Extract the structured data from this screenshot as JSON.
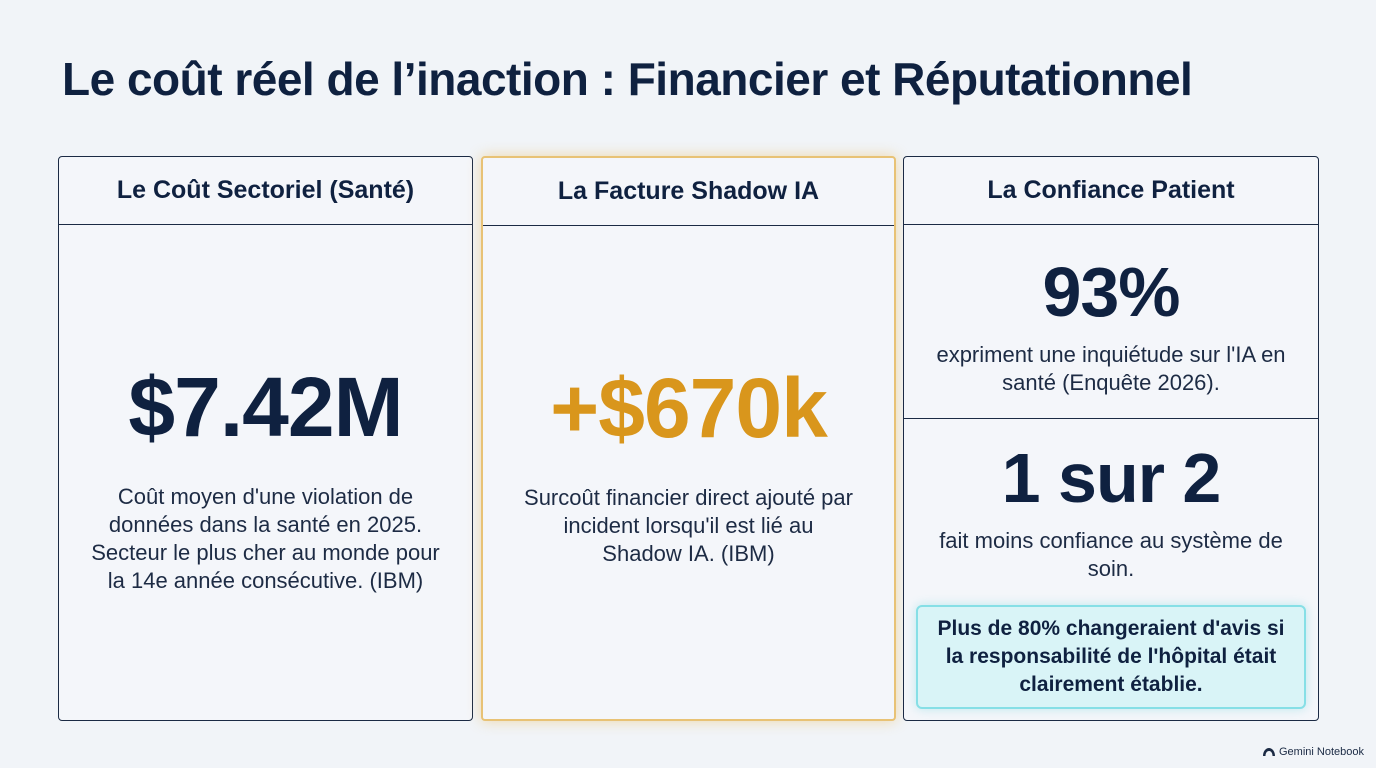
{
  "title": "Le coût réel de l’inaction : Financier et Réputationnel",
  "cards": [
    {
      "header": "Le Coût Sectoriel (Santé)",
      "value": "$7.42M",
      "description": "Coût moyen d'une violation de données dans la santé en 2025. Secteur le plus cher au monde pour la 14e année consécutive. (IBM)",
      "value_color": "#0f2140"
    },
    {
      "header": "La Facture Shadow IA",
      "value": "+$670k",
      "description": "Surcoût financier direct ajouté par incident lorsqu'il est lié au Shadow IA. (IBM)",
      "value_color": "#d9961c",
      "highlight_color": "#e8c275"
    },
    {
      "header": "La Confiance Patient",
      "stats": [
        {
          "value": "93%",
          "description": "expriment une inquiétude sur l'IA en santé (Enquête 2026)."
        },
        {
          "value": "1 sur 2",
          "description": "fait moins confiance au système de soin."
        }
      ],
      "callout": "Plus de 80% changeraient d'avis si la responsabilité de l'hôpital était clairement établie.",
      "callout_color": "#d9f4f7"
    }
  ],
  "branding": {
    "label": "Gemini Notebook",
    "icon": "notebook-logo-icon"
  }
}
